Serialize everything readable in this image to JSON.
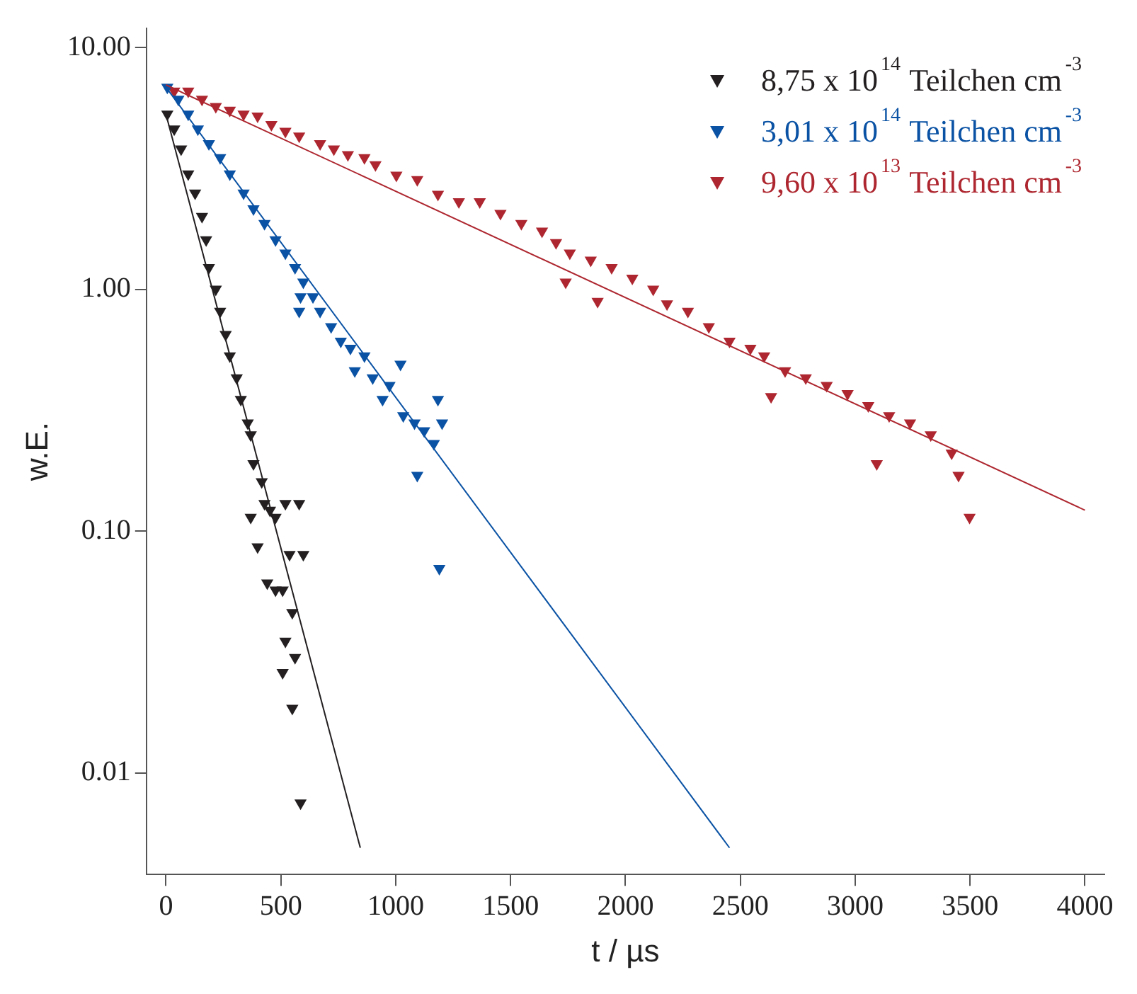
{
  "chart_data": {
    "type": "scatter",
    "xlabel": "t / µs",
    "ylabel": "w.E.",
    "log": "y",
    "grid": false,
    "legend": "top right",
    "marker": "triangle",
    "xlim": [
      -85,
      4085
    ],
    "xticks": [
      0,
      500,
      1000,
      1500,
      2000,
      2500,
      3000,
      3500,
      4000
    ],
    "ylim": [
      0.0038,
      12
    ],
    "yticks": [
      {
        "value": 0.01,
        "label": "0.01"
      },
      {
        "value": 0.1,
        "label": "0.10"
      },
      {
        "value": 1,
        "label": "1.00"
      },
      {
        "value": 10,
        "label": "10.00"
      }
    ],
    "series": [
      {
        "name": "8,75 x 10$^{14}$ Teilchen cm$^{-3}$",
        "color": "#231f20",
        "x": [
          6,
          36,
          66,
          97,
          127,
          157,
          175,
          187,
          217,
          236,
          260,
          278,
          308,
          326,
          356,
          369,
          381,
          417,
          429,
          453,
          477,
          520,
          580,
          369,
          399,
          538,
          598,
          441,
          477,
          508,
          550,
          520,
          562,
          508,
          550,
          586
        ],
        "values": [
          5.3,
          4.6,
          3.8,
          3.0,
          2.5,
          2.0,
          1.6,
          1.23,
          1.0,
          0.81,
          0.65,
          0.53,
          0.43,
          0.35,
          0.28,
          0.25,
          0.19,
          0.16,
          0.13,
          0.122,
          0.114,
          0.13,
          0.13,
          0.114,
          0.086,
          0.08,
          0.08,
          0.061,
          0.057,
          0.057,
          0.046,
          0.035,
          0.03,
          0.026,
          0.0185,
          0.0075
        ]
      },
      {
        "name": "3,01 x 10$^{14}$ Teilchen cm$^{-3}$",
        "color": "#0a52a4",
        "x": [
          6,
          54,
          97,
          139,
          187,
          236,
          278,
          338,
          381,
          429,
          477,
          520,
          562,
          598,
          640,
          671,
          719,
          761,
          803,
          822,
          864,
          900,
          943,
          973,
          1021,
          1033,
          1082,
          1124,
          1094,
          1184,
          1166,
          1202,
          1190,
          586,
          580
        ],
        "values": [
          6.85,
          6.1,
          5.3,
          4.6,
          4.0,
          3.5,
          3.0,
          2.5,
          2.15,
          1.87,
          1.6,
          1.41,
          1.23,
          1.07,
          0.93,
          0.81,
          0.7,
          0.61,
          0.57,
          0.46,
          0.53,
          0.43,
          0.35,
          0.4,
          0.49,
          0.3,
          0.28,
          0.26,
          0.17,
          0.35,
          0.23,
          0.28,
          0.07,
          0.93,
          0.81
        ]
      },
      {
        "name": "9,60 x 10$^{13}$ Teilchen cm$^{-3}$",
        "color": "#ae2730",
        "x": [
          36,
          97,
          157,
          217,
          278,
          338,
          399,
          459,
          520,
          580,
          671,
          731,
          792,
          864,
          912,
          1003,
          1094,
          1184,
          1275,
          1366,
          1456,
          1547,
          1637,
          1698,
          1758,
          1849,
          1940,
          2030,
          2121,
          2181,
          2272,
          2363,
          2453,
          2544,
          2604,
          2695,
          2785,
          2876,
          2967,
          3057,
          3148,
          3239,
          3329,
          3420,
          3450,
          3498,
          3094,
          2634,
          1879,
          1740
        ],
        "values": [
          6.6,
          6.6,
          6.1,
          5.7,
          5.5,
          5.3,
          5.2,
          4.8,
          4.5,
          4.3,
          4.0,
          3.8,
          3.6,
          3.5,
          3.27,
          2.96,
          2.84,
          2.47,
          2.3,
          2.3,
          2.06,
          1.87,
          1.74,
          1.56,
          1.41,
          1.32,
          1.23,
          1.11,
          1.0,
          0.87,
          0.81,
          0.7,
          0.61,
          0.57,
          0.53,
          0.46,
          0.43,
          0.4,
          0.37,
          0.33,
          0.3,
          0.28,
          0.25,
          0.21,
          0.17,
          0.114,
          0.19,
          0.36,
          0.89,
          1.07
        ]
      },
      {
        "type": "line",
        "marker": "none",
        "color": "#231f20",
        "x": [
          0,
          846
        ],
        "values": [
          5.3,
          0.0049
        ]
      },
      {
        "type": "line",
        "marker": "none",
        "color": "#0a52a4",
        "x": [
          0,
          2453
        ],
        "values": [
          6.85,
          0.0049
        ]
      },
      {
        "type": "line",
        "marker": "none",
        "color": "#ae2730",
        "x": [
          0,
          4000
        ],
        "values": [
          7,
          0.122
        ]
      }
    ]
  }
}
